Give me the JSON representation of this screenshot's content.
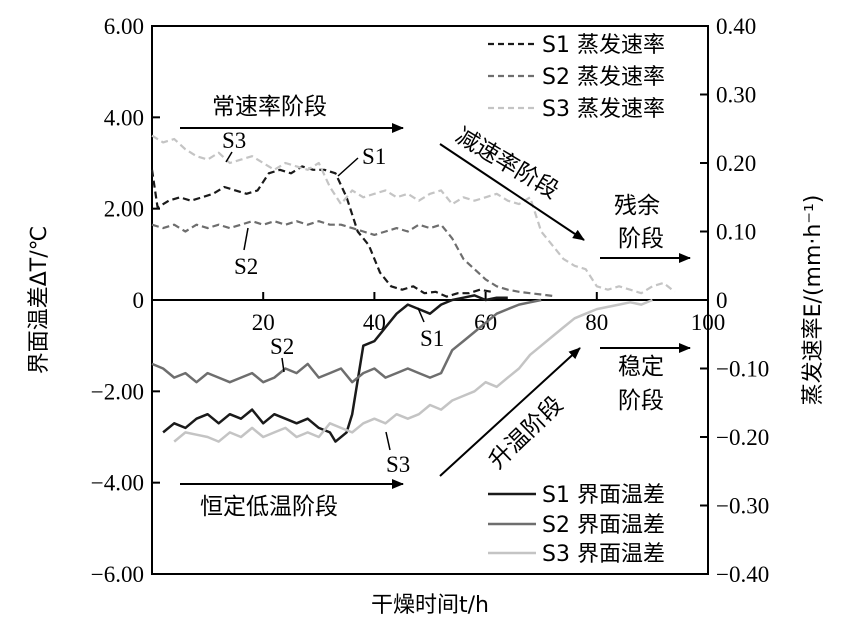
{
  "chart_data": {
    "type": "line",
    "xlabel": "干燥时间t/h",
    "ylabel_left": "界面温差ΔT/℃",
    "ylabel_right": "蒸发速率E/(mm·h⁻¹)",
    "xlim": [
      0,
      100
    ],
    "ylim_left": [
      -6,
      6
    ],
    "ylim_right": [
      -0.4,
      0.4
    ],
    "x_ticks": [
      "20",
      "40",
      "60",
      "80",
      "100"
    ],
    "y_left_ticks": [
      "6.00",
      "4.00",
      "2.00",
      "0",
      "-2.00",
      "-4.00",
      "-6.00"
    ],
    "y_right_ticks": [
      "0.40",
      "0.30",
      "0.20",
      "0.10",
      "0",
      "-0.10",
      "-0.20",
      "-0.30",
      "-0.40"
    ],
    "legend_top": [
      "S1 蒸发速率",
      "S2 蒸发速率",
      "S3 蒸发速率"
    ],
    "legend_bottom": [
      "S1 界面温差",
      "S2 界面温差",
      "S3 界面温差"
    ],
    "stage_labels": {
      "constant_rate": "常速率阶段",
      "falling_rate": "减速率阶段",
      "residual_1": "残余",
      "residual_2": "阶段",
      "constant_low_temp": "恒定低温阶段",
      "heating": "升温阶段",
      "stable_1": "稳定",
      "stable_2": "阶段"
    },
    "curve_labels": {
      "evap_s1": "S1",
      "evap_s2": "S2",
      "evap_s3": "S3",
      "temp_s1": "S1",
      "temp_s2": "S2",
      "temp_s3": "S3"
    },
    "colors": {
      "s1": "#1a1a1a",
      "s2": "#6e6e6e",
      "s3": "#c4c4c4"
    },
    "evaporation_series": [
      {
        "name": "S1 蒸发速率",
        "x": [
          0,
          1,
          3,
          5,
          7,
          9,
          11,
          13,
          15,
          17,
          19,
          21,
          23,
          25,
          27,
          29,
          31,
          33,
          35,
          37,
          39,
          41,
          43,
          45,
          47,
          49,
          51,
          53,
          55,
          57,
          59,
          61
        ],
        "y": [
          0.19,
          0.135,
          0.145,
          0.15,
          0.145,
          0.15,
          0.155,
          0.165,
          0.16,
          0.155,
          0.16,
          0.185,
          0.19,
          0.185,
          0.195,
          0.19,
          0.19,
          0.185,
          0.15,
          0.1,
          0.08,
          0.04,
          0.02,
          0.015,
          0.02,
          0.01,
          0.012,
          0.005,
          0.01,
          0.01,
          0.015,
          0.012
        ]
      },
      {
        "name": "S2 蒸发速率",
        "x": [
          0,
          2,
          4,
          6,
          8,
          10,
          12,
          14,
          16,
          18,
          20,
          22,
          24,
          26,
          28,
          30,
          32,
          34,
          36,
          38,
          40,
          42,
          44,
          46,
          48,
          50,
          52,
          54,
          56,
          58,
          60,
          62,
          64,
          66,
          68,
          70,
          72
        ],
        "y": [
          0.11,
          0.105,
          0.11,
          0.1,
          0.11,
          0.105,
          0.11,
          0.105,
          0.11,
          0.115,
          0.11,
          0.115,
          0.11,
          0.115,
          0.11,
          0.115,
          0.11,
          0.11,
          0.105,
          0.1,
          0.095,
          0.1,
          0.105,
          0.1,
          0.11,
          0.105,
          0.11,
          0.09,
          0.06,
          0.045,
          0.03,
          0.02,
          0.015,
          0.012,
          0.01,
          0.008,
          0.006
        ]
      },
      {
        "name": "S3 蒸发速率",
        "x": [
          0,
          2,
          4,
          6,
          8,
          10,
          12,
          14,
          16,
          18,
          20,
          22,
          24,
          26,
          28,
          30,
          32,
          34,
          36,
          38,
          40,
          42,
          44,
          46,
          48,
          50,
          52,
          54,
          56,
          58,
          60,
          62,
          64,
          66,
          68,
          70,
          72,
          74,
          76,
          78,
          80,
          82,
          84,
          86,
          88,
          90,
          92,
          94
        ],
        "y": [
          0.24,
          0.23,
          0.235,
          0.22,
          0.21,
          0.205,
          0.215,
          0.2,
          0.205,
          0.21,
          0.2,
          0.19,
          0.2,
          0.195,
          0.19,
          0.2,
          0.165,
          0.14,
          0.16,
          0.15,
          0.155,
          0.16,
          0.15,
          0.155,
          0.145,
          0.155,
          0.16,
          0.14,
          0.15,
          0.145,
          0.15,
          0.155,
          0.145,
          0.14,
          0.15,
          0.1,
          0.08,
          0.06,
          0.05,
          0.045,
          0.02,
          0.015,
          0.02,
          0.015,
          0.01,
          0.02,
          0.025,
          0.012
        ]
      }
    ],
    "temperature_series": [
      {
        "name": "S1 界面温差",
        "x": [
          2,
          4,
          6,
          8,
          10,
          12,
          14,
          16,
          18,
          20,
          22,
          24,
          26,
          28,
          30,
          32,
          33,
          35,
          36,
          38,
          40,
          42,
          44,
          46,
          48,
          50,
          52,
          54,
          56,
          58,
          60,
          62,
          64
        ],
        "y": [
          -2.9,
          -2.7,
          -2.8,
          -2.6,
          -2.5,
          -2.7,
          -2.5,
          -2.6,
          -2.4,
          -2.7,
          -2.5,
          -2.6,
          -2.7,
          -2.6,
          -2.8,
          -2.9,
          -3.1,
          -2.9,
          -2.5,
          -1.0,
          -0.9,
          -0.6,
          -0.3,
          -0.1,
          -0.2,
          -0.3,
          -0.1,
          0.0,
          0.05,
          0.1,
          0.0,
          0.05,
          0.05
        ]
      },
      {
        "name": "S2 界面温差",
        "x": [
          0,
          2,
          4,
          6,
          8,
          10,
          12,
          14,
          16,
          18,
          20,
          22,
          24,
          26,
          28,
          30,
          32,
          34,
          36,
          38,
          40,
          42,
          44,
          46,
          48,
          50,
          52,
          54,
          56,
          58,
          60,
          62,
          64,
          66,
          68,
          70
        ],
        "y": [
          -1.4,
          -1.5,
          -1.7,
          -1.6,
          -1.8,
          -1.6,
          -1.7,
          -1.8,
          -1.7,
          -1.6,
          -1.8,
          -1.7,
          -1.5,
          -1.6,
          -1.4,
          -1.7,
          -1.6,
          -1.5,
          -1.8,
          -1.6,
          -1.5,
          -1.7,
          -1.6,
          -1.5,
          -1.6,
          -1.7,
          -1.6,
          -1.1,
          -0.9,
          -0.7,
          -0.5,
          -0.3,
          -0.2,
          -0.1,
          -0.05,
          0.0
        ]
      },
      {
        "name": "S3 界面温差",
        "x": [
          4,
          6,
          8,
          10,
          12,
          14,
          16,
          18,
          20,
          22,
          24,
          26,
          28,
          30,
          32,
          34,
          36,
          38,
          40,
          42,
          44,
          46,
          48,
          50,
          52,
          54,
          56,
          58,
          60,
          62,
          64,
          66,
          68,
          70,
          72,
          74,
          76,
          78,
          80,
          82,
          84,
          86,
          88,
          90
        ],
        "y": [
          -3.1,
          -2.9,
          -2.95,
          -3.0,
          -3.1,
          -2.9,
          -3.0,
          -2.8,
          -3.0,
          -2.9,
          -2.8,
          -3.0,
          -2.9,
          -3.0,
          -2.7,
          -2.8,
          -2.9,
          -2.7,
          -2.6,
          -2.7,
          -2.5,
          -2.6,
          -2.5,
          -2.3,
          -2.4,
          -2.2,
          -2.1,
          -2.0,
          -1.8,
          -1.9,
          -1.7,
          -1.5,
          -1.2,
          -1.0,
          -0.8,
          -0.6,
          -0.4,
          -0.3,
          -0.2,
          -0.15,
          -0.1,
          -0.05,
          -0.1,
          0.0
        ]
      }
    ]
  }
}
